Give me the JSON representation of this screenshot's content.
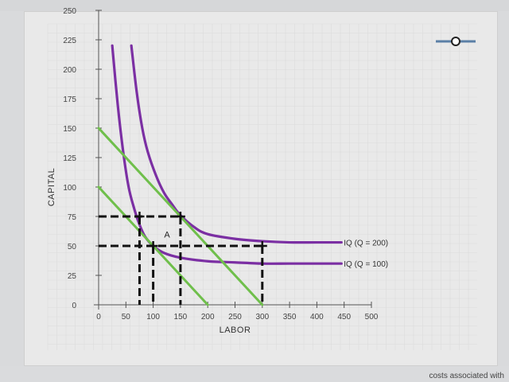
{
  "chart_data": {
    "type": "line",
    "title": "",
    "xlabel": "LABOR",
    "ylabel": "CAPITAL",
    "xlim": [
      0,
      500
    ],
    "ylim": [
      0,
      250
    ],
    "x_ticks": [
      0,
      50,
      100,
      150,
      200,
      250,
      300,
      350,
      400,
      450,
      500
    ],
    "y_ticks": [
      0,
      25,
      50,
      75,
      100,
      125,
      150,
      175,
      200,
      225,
      250
    ],
    "grid": true,
    "series": [
      {
        "name": "IQ (Q = 100)",
        "color": "#7b2fa3",
        "points": [
          [
            25,
            220
          ],
          [
            35,
            170
          ],
          [
            45,
            130
          ],
          [
            55,
            100
          ],
          [
            65,
            82
          ],
          [
            75,
            68
          ],
          [
            85,
            58
          ],
          [
            100,
            50
          ],
          [
            120,
            44
          ],
          [
            150,
            40
          ],
          [
            200,
            37
          ],
          [
            250,
            36
          ],
          [
            300,
            35
          ],
          [
            350,
            35
          ],
          [
            400,
            35
          ],
          [
            445,
            35
          ]
        ]
      },
      {
        "name": "IQ (Q = 200)",
        "color": "#7b2fa3",
        "points": [
          [
            60,
            220
          ],
          [
            70,
            180
          ],
          [
            80,
            150
          ],
          [
            90,
            130
          ],
          [
            105,
            110
          ],
          [
            120,
            95
          ],
          [
            135,
            85
          ],
          [
            150,
            76
          ],
          [
            175,
            66
          ],
          [
            200,
            60
          ],
          [
            250,
            56
          ],
          [
            300,
            54
          ],
          [
            350,
            53
          ],
          [
            400,
            53
          ],
          [
            445,
            53
          ]
        ]
      },
      {
        "name": "",
        "color": "#6fbf4b",
        "points": [
          [
            0,
            100
          ],
          [
            200,
            0
          ]
        ]
      },
      {
        "name": "",
        "color": "#6fbf4b",
        "points": [
          [
            0,
            150
          ],
          [
            300,
            0
          ]
        ]
      }
    ],
    "dashed_lines": [
      {
        "points": [
          [
            0,
            75
          ],
          [
            150,
            75
          ]
        ]
      },
      {
        "points": [
          [
            75,
            75
          ],
          [
            75,
            0
          ]
        ]
      },
      {
        "points": [
          [
            150,
            75
          ],
          [
            150,
            0
          ]
        ]
      },
      {
        "points": [
          [
            0,
            50
          ],
          [
            300,
            50
          ]
        ]
      },
      {
        "points": [
          [
            100,
            50
          ],
          [
            100,
            0
          ]
        ]
      },
      {
        "points": [
          [
            300,
            50
          ],
          [
            300,
            0
          ]
        ]
      }
    ],
    "markers": [
      [
        75,
        75
      ],
      [
        150,
        75
      ],
      [
        100,
        50
      ],
      [
        300,
        50
      ]
    ],
    "annotations": [
      {
        "text": "A",
        "x": 120,
        "y": 57
      }
    ],
    "legend_widget": {
      "line_color": "#5b7fa6",
      "marker": "circle"
    }
  },
  "footer": {
    "text": "costs associated with"
  }
}
